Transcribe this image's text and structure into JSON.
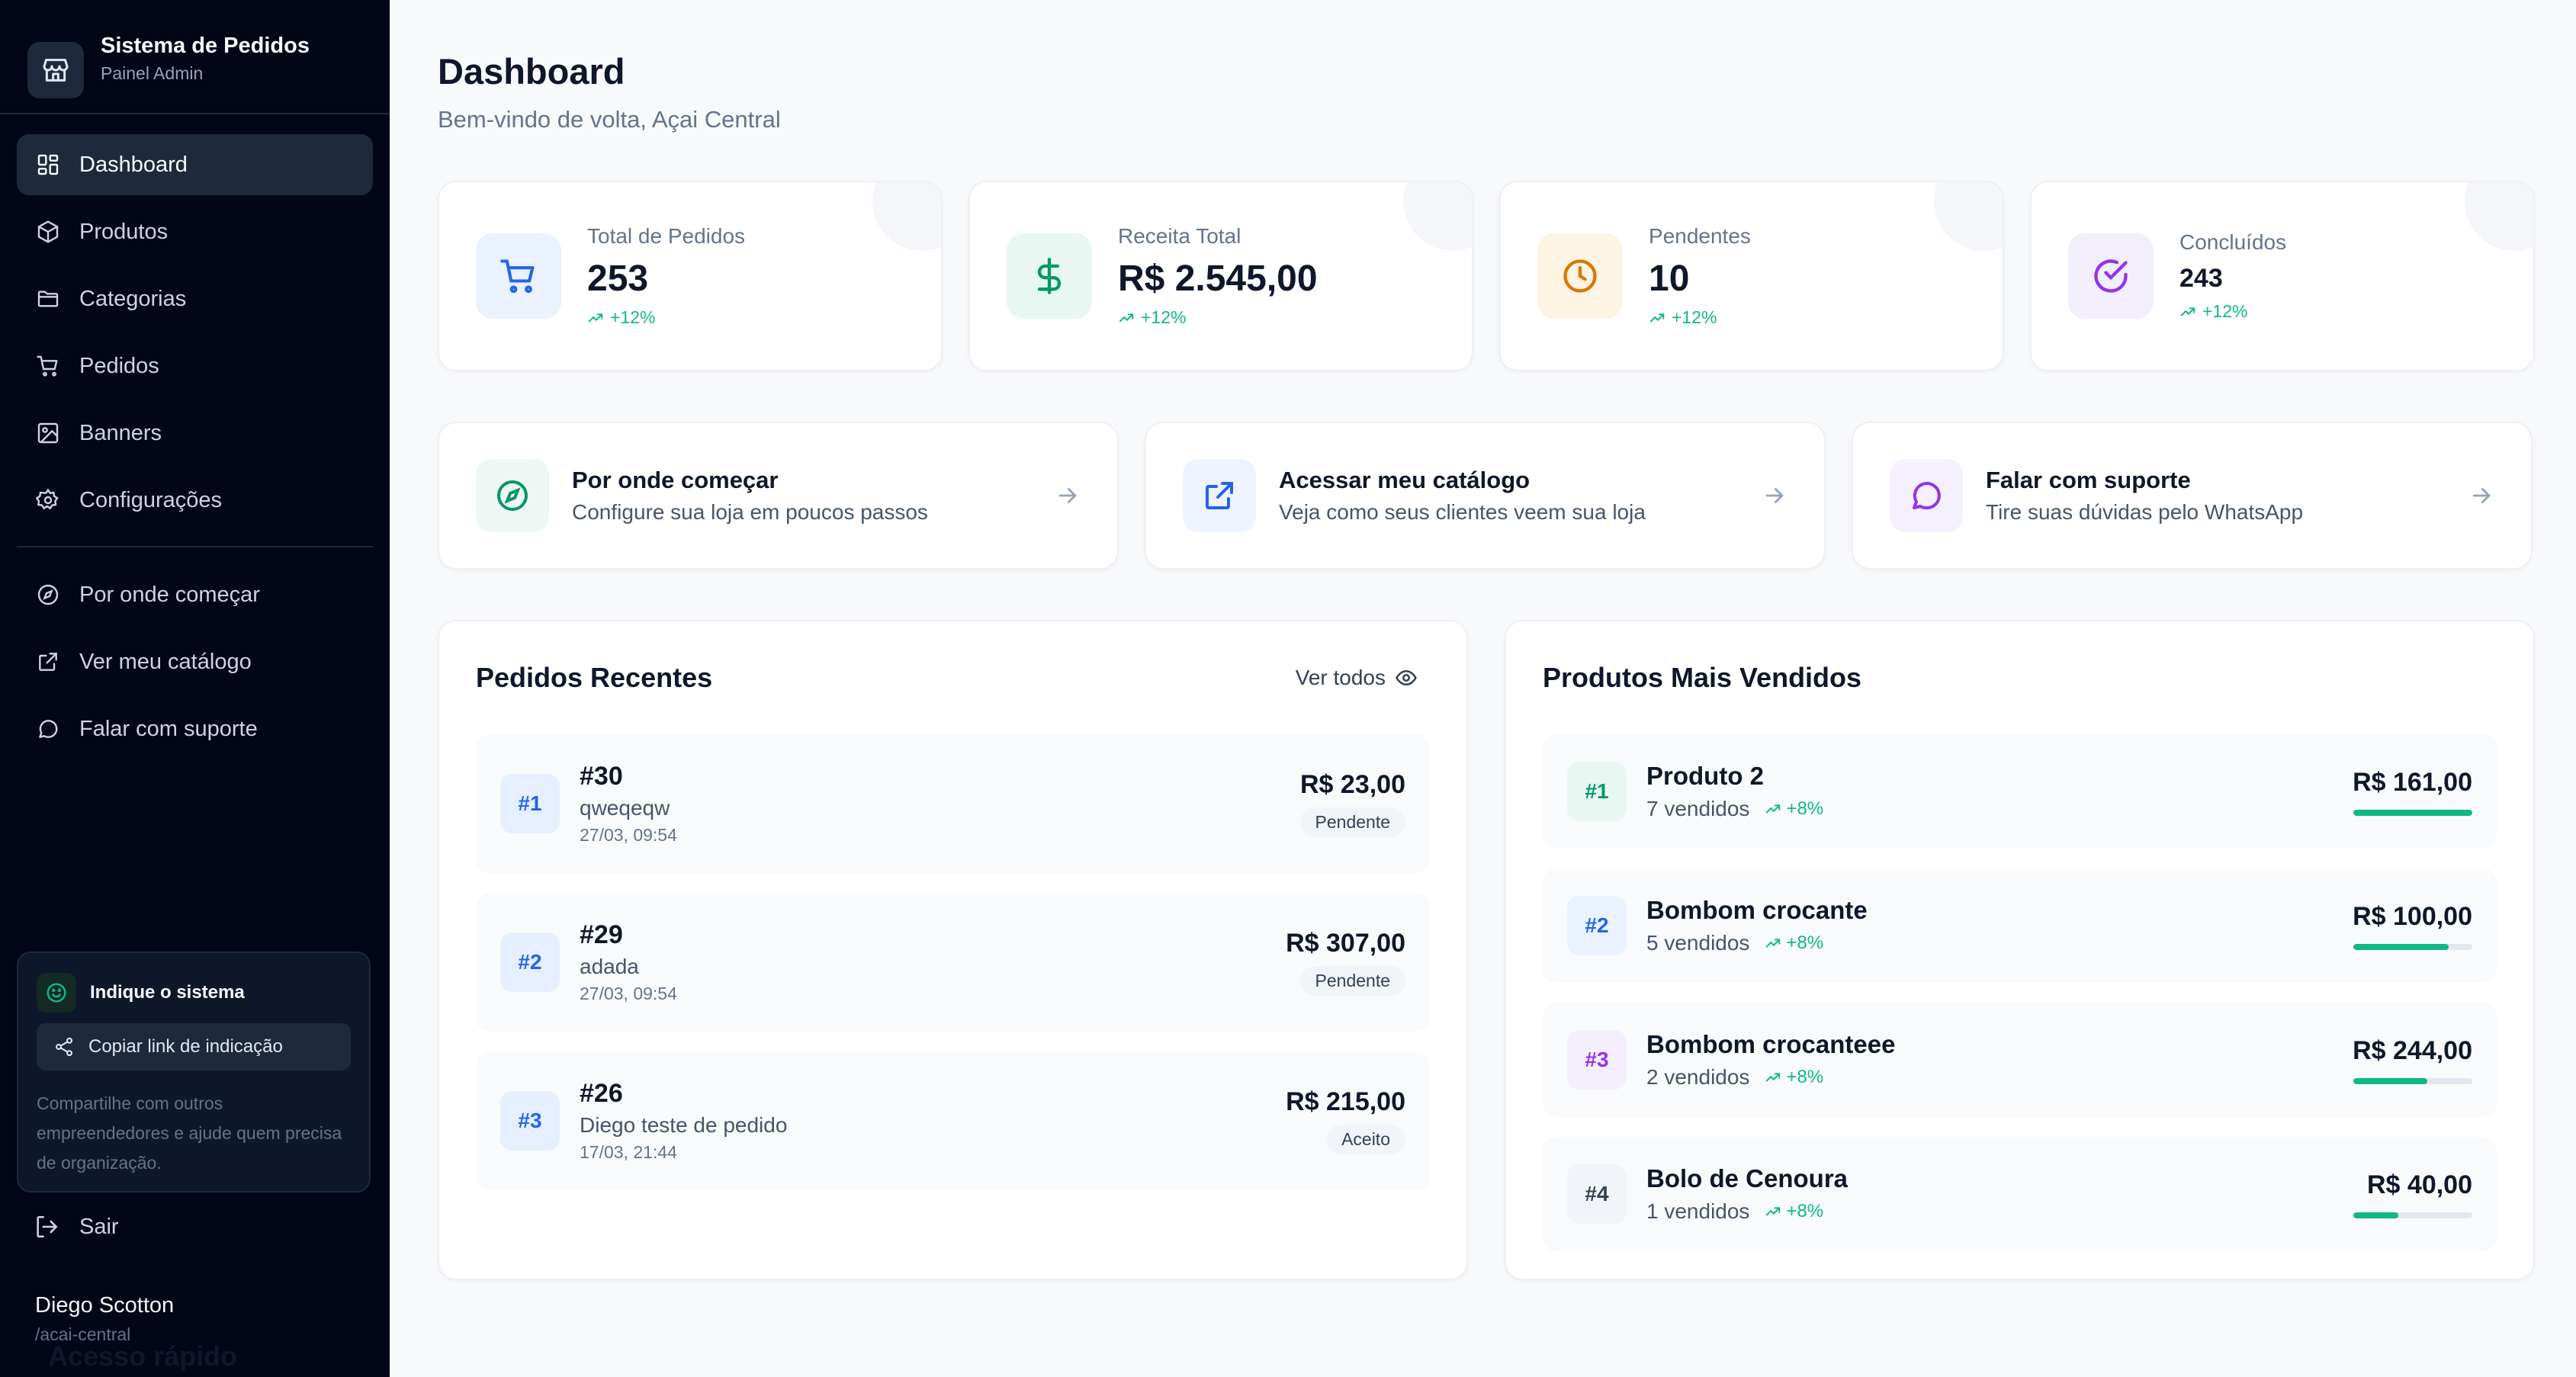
{
  "brand": {
    "title": "Sistema de Pedidos",
    "subtitle": "Painel Admin"
  },
  "nav": {
    "primary": [
      {
        "label": "Dashboard",
        "icon": "dashboard-icon",
        "active": true
      },
      {
        "label": "Produtos",
        "icon": "box-icon"
      },
      {
        "label": "Categorias",
        "icon": "folder-icon"
      },
      {
        "label": "Pedidos",
        "icon": "cart-icon"
      },
      {
        "label": "Banners",
        "icon": "image-icon"
      },
      {
        "label": "Configurações",
        "icon": "gear-icon"
      }
    ],
    "secondary": [
      {
        "label": "Por onde começar",
        "icon": "compass-icon"
      },
      {
        "label": "Ver meu catálogo",
        "icon": "external-link-icon"
      },
      {
        "label": "Falar com suporte",
        "icon": "chat-icon"
      }
    ]
  },
  "referral": {
    "title": "Indique o sistema",
    "button": "Copiar link de indicação",
    "text": "Compartilhe com outros empreendedores e ajude quem precisa de organização."
  },
  "logout": "Sair",
  "user": {
    "name": "Diego Scotton",
    "handle": "/acai-central"
  },
  "header": {
    "title": "Dashboard",
    "subtitle": "Bem-vindo de volta, Açai Central"
  },
  "stats": [
    {
      "label": "Total de Pedidos",
      "value": "253",
      "trend": "+12%",
      "icon": "cart-icon",
      "color": "#2563eb",
      "bg": "#eaf2ff"
    },
    {
      "label": "Receita Total",
      "value": "R$ 2.545,00",
      "trend": "+12%",
      "icon": "dollar-icon",
      "color": "#059669",
      "bg": "#e8f7f1"
    },
    {
      "label": "Pendentes",
      "value": "10",
      "trend": "+12%",
      "icon": "clock-icon",
      "color": "#d97706",
      "bg": "#fdf4e4"
    },
    {
      "label": "Concluídos",
      "value": "243",
      "trend": "+12%",
      "icon": "check-circle-icon",
      "color": "#9333ea",
      "bg": "#f3eefc"
    }
  ],
  "quick": [
    {
      "title": "Por onde começar",
      "subtitle": "Configure sua loja em poucos passos",
      "icon": "compass-icon",
      "color": "#059669",
      "bg": "#e8f7f1"
    },
    {
      "title": "Acessar meu catálogo",
      "subtitle": "Veja como seus clientes veem sua loja",
      "icon": "external-link-icon",
      "color": "#2563eb",
      "bg": "#eaf2ff"
    },
    {
      "title": "Falar com suporte",
      "subtitle": "Tire suas dúvidas pelo WhatsApp",
      "icon": "chat-icon",
      "color": "#9333ea",
      "bg": "#f3eefc"
    }
  ],
  "orders": {
    "title": "Pedidos Recentes",
    "view_all": "Ver todos",
    "items": [
      {
        "rank": "#1",
        "number": "#30",
        "name": "qweqeqw",
        "date": "27/03, 09:54",
        "price": "R$ 23,00",
        "status": "Pendente"
      },
      {
        "rank": "#2",
        "number": "#29",
        "name": "adada",
        "date": "27/03, 09:54",
        "price": "R$ 307,00",
        "status": "Pendente"
      },
      {
        "rank": "#3",
        "number": "#26",
        "name": "Diego teste de pedido",
        "date": "17/03, 21:44",
        "price": "R$ 215,00",
        "status": "Aceito"
      }
    ]
  },
  "products": {
    "title": "Produtos Mais Vendidos",
    "items": [
      {
        "rank": "#1",
        "name": "Produto 2",
        "sold": "7 vendidos",
        "trend": "+8%",
        "price": "R$ 161,00",
        "progress": 1.0,
        "rank_color": "#059669",
        "rank_bg": "#e8f7f1"
      },
      {
        "rank": "#2",
        "name": "Bombom crocante",
        "sold": "5 vendidos",
        "trend": "+8%",
        "price": "R$ 100,00",
        "progress": 0.8,
        "rank_color": "#2563eb",
        "rank_bg": "#eaf2ff"
      },
      {
        "rank": "#3",
        "name": "Bombom crocanteee",
        "sold": "2 vendidos",
        "trend": "+8%",
        "price": "R$ 244,00",
        "progress": 0.62,
        "rank_color": "#9333ea",
        "rank_bg": "#f5effd"
      },
      {
        "rank": "#4",
        "name": "Bolo de Cenoura",
        "sold": "1 vendidos",
        "trend": "+8%",
        "price": "R$ 40,00",
        "progress": 0.38,
        "rank_color": "#334155",
        "rank_bg": "#f1f5f9"
      }
    ]
  },
  "quick_access_title": "Acesso rápido"
}
